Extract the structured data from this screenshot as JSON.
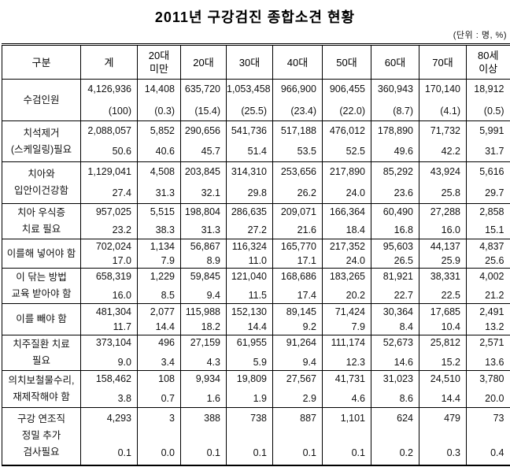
{
  "title": "2011년 구강검진 종합소견 현황",
  "unit_note": "(단위 : 명, %)",
  "table": {
    "corner_header": "구분",
    "columns": [
      "계",
      "20대\n미만",
      "20대",
      "30대",
      "40대",
      "50대",
      "60대",
      "70대",
      "80세\n이상"
    ],
    "rows": [
      {
        "label": "수검인원",
        "counts": [
          "4,126,936",
          "14,408",
          "635,720",
          "1,053,458",
          "966,900",
          "906,455",
          "360,943",
          "170,140",
          "18,912"
        ],
        "percents": [
          "(100)",
          "(0.3)",
          "(15.4)",
          "(25.5)",
          "(23.4)",
          "(22.0)",
          "(8.7)",
          "(4.1)",
          "(0.5)"
        ]
      },
      {
        "label": "치석제거\n(스케일링)필요",
        "counts": [
          "2,088,057",
          "5,852",
          "290,656",
          "541,736",
          "517,188",
          "476,012",
          "178,890",
          "71,732",
          "5,991"
        ],
        "percents": [
          "50.6",
          "40.6",
          "45.7",
          "51.4",
          "53.5",
          "52.5",
          "49.6",
          "42.2",
          "31.7"
        ]
      },
      {
        "label": "치아와\n입안이건강함",
        "counts": [
          "1,129,041",
          "4,508",
          "203,845",
          "314,310",
          "253,656",
          "217,890",
          "85,292",
          "43,924",
          "5,616"
        ],
        "percents": [
          "27.4",
          "31.3",
          "32.1",
          "29.8",
          "26.2",
          "24.0",
          "23.6",
          "25.8",
          "29.7"
        ]
      },
      {
        "label": "치아 우식증\n치료 필요",
        "counts": [
          "957,025",
          "5,515",
          "198,804",
          "286,635",
          "209,071",
          "166,364",
          "60,490",
          "27,288",
          "2,858"
        ],
        "percents": [
          "23.2",
          "38.3",
          "31.3",
          "27.2",
          "21.6",
          "18.4",
          "16.8",
          "16.0",
          "15.1"
        ]
      },
      {
        "label": "이를해 넣어야 함",
        "counts": [
          "702,024",
          "1,134",
          "56,867",
          "116,324",
          "165,770",
          "217,352",
          "95,603",
          "44,137",
          "4,837"
        ],
        "percents": [
          "17.0",
          "7.9",
          "8.9",
          "11.0",
          "17.1",
          "24.0",
          "26.5",
          "25.9",
          "25.6"
        ]
      },
      {
        "label": "이 닦는 방법\n교육 받아야 함",
        "counts": [
          "658,319",
          "1,229",
          "59,845",
          "121,040",
          "168,686",
          "183,265",
          "81,921",
          "38,331",
          "4,002"
        ],
        "percents": [
          "16.0",
          "8.5",
          "9.4",
          "11.5",
          "17.4",
          "20.2",
          "22.7",
          "22.5",
          "21.2"
        ]
      },
      {
        "label": "이를 빼야 함",
        "counts": [
          "481,304",
          "2,077",
          "115,988",
          "152,130",
          "89,145",
          "71,424",
          "30,364",
          "17,685",
          "2,491"
        ],
        "percents": [
          "11.7",
          "14.4",
          "18.2",
          "14.4",
          "9.2",
          "7.9",
          "8.4",
          "10.4",
          "13.2"
        ]
      },
      {
        "label": "치주질환 치료\n필요",
        "counts": [
          "373,104",
          "496",
          "27,159",
          "61,955",
          "91,264",
          "111,174",
          "52,673",
          "25,812",
          "2,571"
        ],
        "percents": [
          "9.0",
          "3.4",
          "4.3",
          "5.9",
          "9.4",
          "12.3",
          "14.6",
          "15.2",
          "13.6"
        ]
      },
      {
        "label": "의치보철물수리,\n재제작해야 함",
        "counts": [
          "158,462",
          "108",
          "9,934",
          "19,809",
          "27,567",
          "41,731",
          "31,023",
          "24,510",
          "3,780"
        ],
        "percents": [
          "3.8",
          "0.7",
          "1.6",
          "1.9",
          "2.9",
          "4.6",
          "8.6",
          "14.4",
          "20.0"
        ]
      },
      {
        "label": "구강 연조직\n정밀 추가\n검사필요",
        "counts": [
          "4,293",
          "3",
          "388",
          "738",
          "887",
          "1,101",
          "624",
          "479",
          "73"
        ],
        "percents": [
          "0.1",
          "0.0",
          "0.1",
          "0.1",
          "0.1",
          "0.1",
          "0.2",
          "0.3",
          "0.4"
        ]
      }
    ]
  }
}
